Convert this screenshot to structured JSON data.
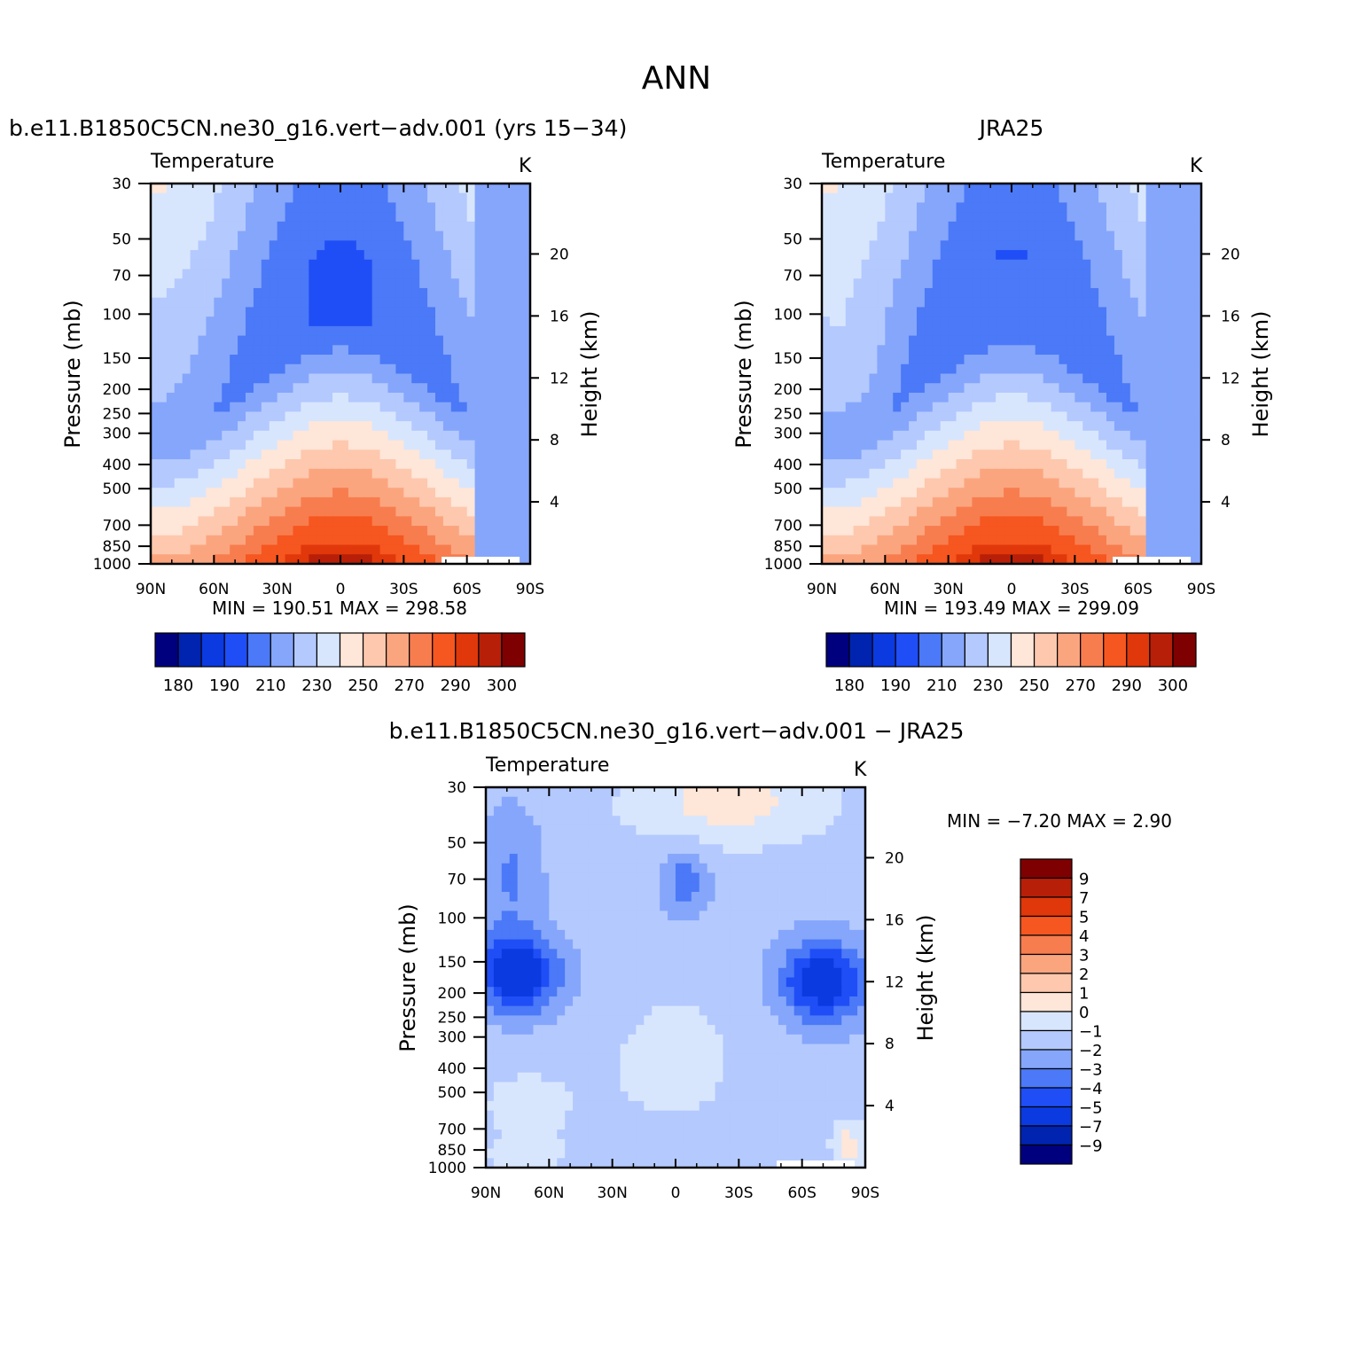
{
  "figure_title": "ANN",
  "colors": {
    "temp": [
      "#00007f",
      "#0024b0",
      "#0a3ae0",
      "#1f4ef6",
      "#4b79f7",
      "#85a6fb",
      "#b4c9fe",
      "#d8e6fd",
      "#fee6d8",
      "#fdc8ae",
      "#fba57f",
      "#f77d4f",
      "#f6561f",
      "#e0380a",
      "#b81f08",
      "#7f0000"
    ],
    "diff": [
      "#00007f",
      "#0024b0",
      "#0a3ae0",
      "#1f4ef6",
      "#4b79f7",
      "#85a6fb",
      "#b4c9fe",
      "#d8e6fd",
      "#fee6d8",
      "#fdc8ae",
      "#fba57f",
      "#f77d4f",
      "#f6561f",
      "#e0380a",
      "#b81f08",
      "#7f0000"
    ],
    "missing": "#ffffff"
  },
  "chart_data": [
    {
      "type": "heatmap",
      "id": "panel-model",
      "title": "b.e11.B1850C5CN.ne30_g16.vert−adv.001 (yrs 15−34)",
      "subtitle_left": "Temperature",
      "subtitle_right": "K",
      "xlabel": "",
      "ylabel": "Pressure (mb)",
      "ylabel_right": "Height (km)",
      "x_ticks": [
        "90N",
        "60N",
        "30N",
        "0",
        "30S",
        "60S",
        "90S"
      ],
      "x_tick_values": [
        90,
        60,
        30,
        0,
        -30,
        -60,
        -90
      ],
      "y_ticks": [
        "30",
        "50",
        "70",
        "100",
        "150",
        "200",
        "250",
        "300",
        "400",
        "500",
        "700",
        "850",
        "1000"
      ],
      "y_tick_values": [
        30,
        50,
        70,
        100,
        150,
        200,
        250,
        300,
        400,
        500,
        700,
        850,
        1000
      ],
      "height_ticks": [
        "20",
        "16",
        "12",
        "8",
        "4"
      ],
      "height_tick_values": [
        20,
        16,
        12,
        8,
        4
      ],
      "min_max_text": "MIN =  190.51   MAX =  298.58",
      "min": 190.51,
      "max": 298.58,
      "field": "model",
      "colorbar_labels": [
        "180",
        "190",
        "210",
        "230",
        "250",
        "270",
        "290",
        "300"
      ],
      "levels": [
        180,
        185,
        190,
        200,
        210,
        220,
        230,
        240,
        250,
        260,
        270,
        280,
        290,
        295,
        300
      ]
    },
    {
      "type": "heatmap",
      "id": "panel-obs",
      "title": "JRA25",
      "subtitle_left": "Temperature",
      "subtitle_right": "K",
      "xlabel": "",
      "ylabel": "Pressure (mb)",
      "ylabel_right": "Height (km)",
      "x_ticks": [
        "90N",
        "60N",
        "30N",
        "0",
        "30S",
        "60S",
        "90S"
      ],
      "x_tick_values": [
        90,
        60,
        30,
        0,
        -30,
        -60,
        -90
      ],
      "y_ticks": [
        "30",
        "50",
        "70",
        "100",
        "150",
        "200",
        "250",
        "300",
        "400",
        "500",
        "700",
        "850",
        "1000"
      ],
      "y_tick_values": [
        30,
        50,
        70,
        100,
        150,
        200,
        250,
        300,
        400,
        500,
        700,
        850,
        1000
      ],
      "height_ticks": [
        "20",
        "16",
        "12",
        "8",
        "4"
      ],
      "height_tick_values": [
        20,
        16,
        12,
        8,
        4
      ],
      "min_max_text": "MIN =  193.49   MAX =  299.09",
      "min": 193.49,
      "max": 299.09,
      "field": "obs",
      "colorbar_labels": [
        "180",
        "190",
        "210",
        "230",
        "250",
        "270",
        "290",
        "300"
      ],
      "levels": [
        180,
        185,
        190,
        200,
        210,
        220,
        230,
        240,
        250,
        260,
        270,
        280,
        290,
        295,
        300
      ]
    },
    {
      "type": "heatmap",
      "id": "panel-diff",
      "title": "b.e11.B1850C5CN.ne30_g16.vert−adv.001  −  JRA25",
      "subtitle_left": "Temperature",
      "subtitle_right": "K",
      "xlabel": "",
      "ylabel": "Pressure (mb)",
      "ylabel_right": "Height (km)",
      "x_ticks": [
        "90N",
        "60N",
        "30N",
        "0",
        "30S",
        "60S",
        "90S"
      ],
      "x_tick_values": [
        90,
        60,
        30,
        0,
        -30,
        -60,
        -90
      ],
      "y_ticks": [
        "30",
        "50",
        "70",
        "100",
        "150",
        "200",
        "250",
        "300",
        "400",
        "500",
        "700",
        "850",
        "1000"
      ],
      "y_tick_values": [
        30,
        50,
        70,
        100,
        150,
        200,
        250,
        300,
        400,
        500,
        700,
        850,
        1000
      ],
      "height_ticks": [
        "20",
        "16",
        "12",
        "8",
        "4"
      ],
      "height_tick_values": [
        20,
        16,
        12,
        8,
        4
      ],
      "min_max_text": "MIN =   −7.20   MAX =    2.90",
      "min": -7.2,
      "max": 2.9,
      "field": "diff",
      "colorbar_labels": [
        "9",
        "7",
        "5",
        "4",
        "3",
        "2",
        "1",
        "0",
        "−1",
        "−2",
        "−3",
        "−4",
        "−5",
        "−7",
        "−9"
      ],
      "levels": [
        -9,
        -7,
        -5,
        -4,
        -3,
        -2,
        -1,
        0,
        1,
        2,
        3,
        4,
        5,
        7,
        9
      ]
    }
  ]
}
